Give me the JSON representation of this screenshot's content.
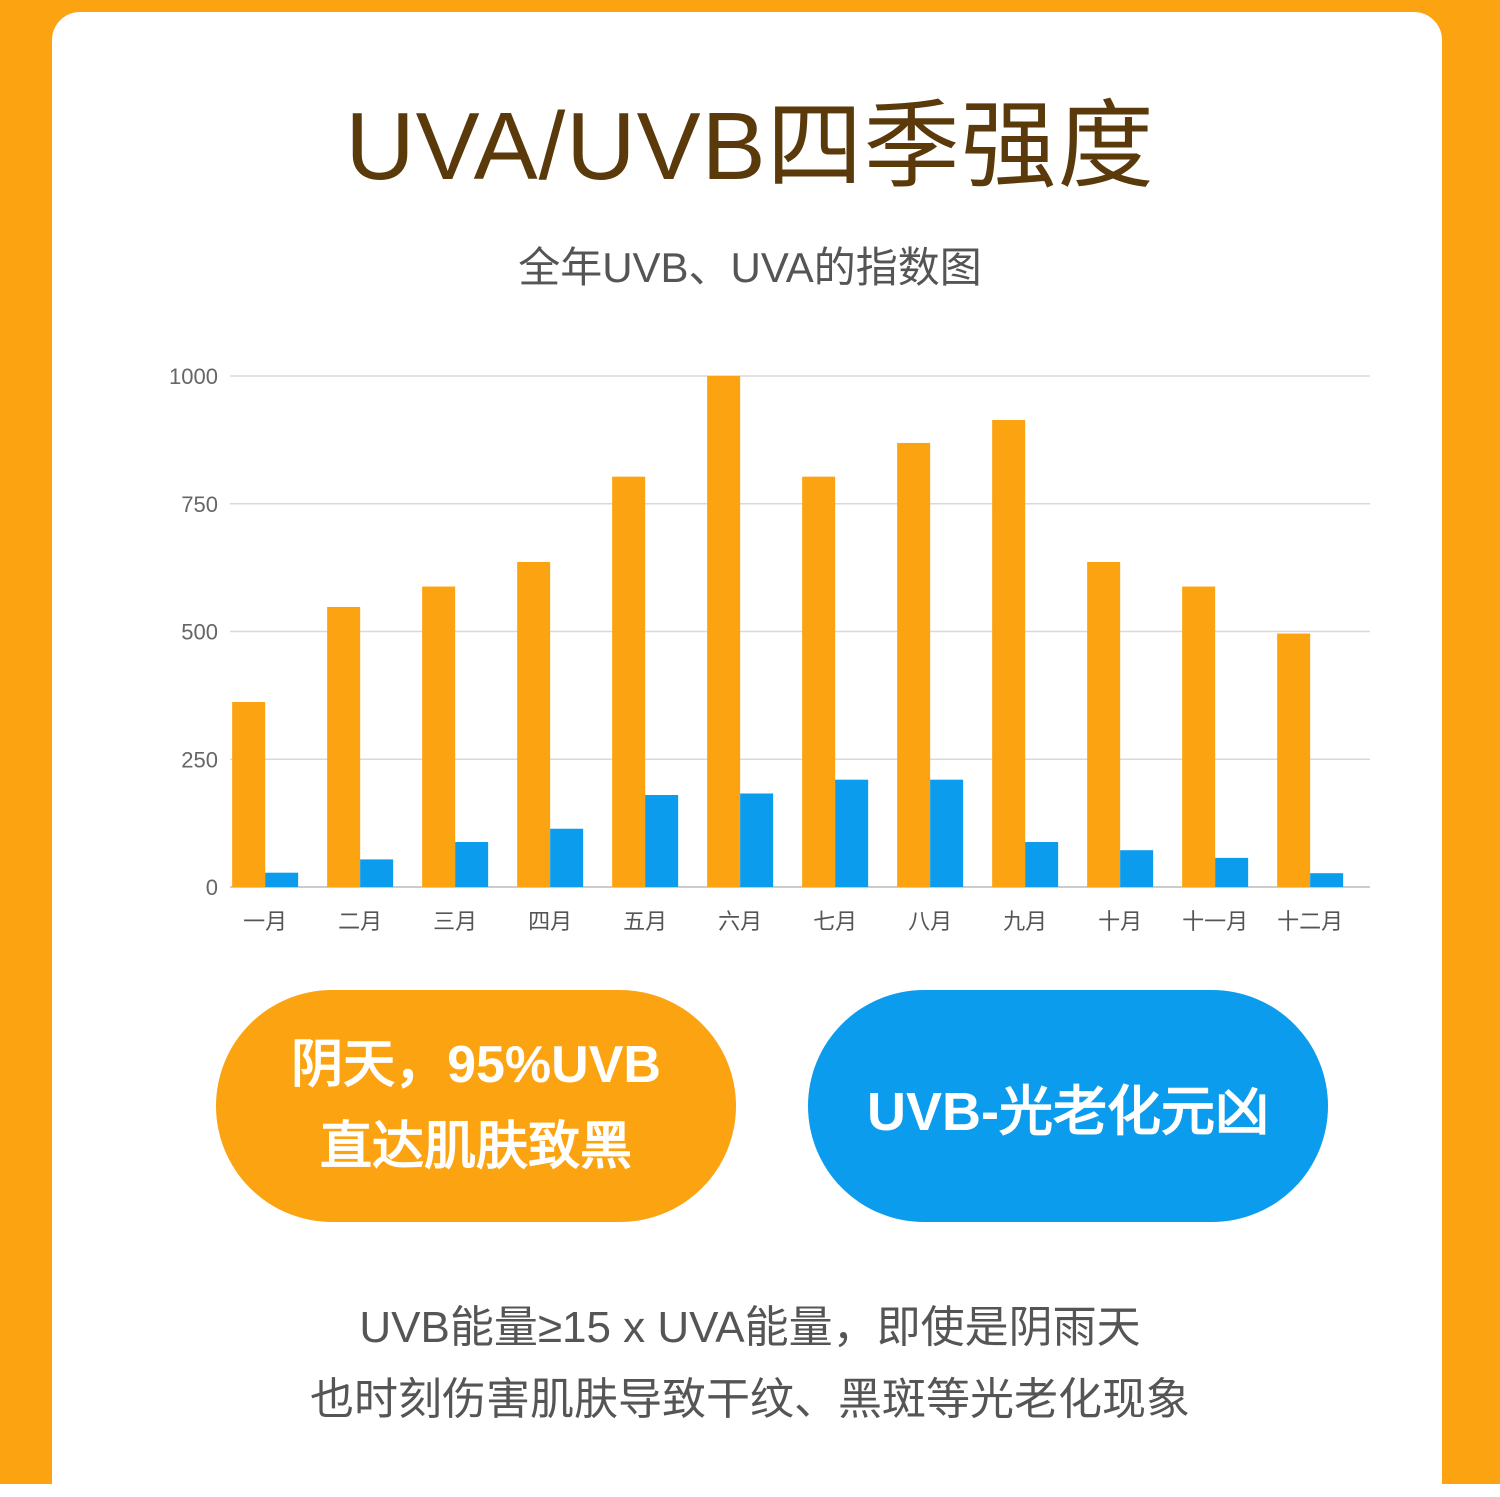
{
  "title": "UVA/UVB四季强度",
  "subtitle": "全年UVB、UVA的指数图",
  "colors": {
    "background": "#fca311",
    "card": "#ffffff",
    "title": "#5a3a0a",
    "uva_bar": "#fca311",
    "uvb_bar": "#0b9ced"
  },
  "chart_data": {
    "type": "bar",
    "categories": [
      "一月",
      "二月",
      "三月",
      "四月",
      "五月",
      "六月",
      "七月",
      "八月",
      "九月",
      "十月",
      "十一月",
      "十二月"
    ],
    "series": [
      {
        "values": [
          362,
          548,
          588,
          636,
          803,
          1000,
          803,
          869,
          914,
          636,
          588,
          496
        ],
        "color": "#fca311"
      },
      {
        "values": [
          28,
          54,
          88,
          114,
          180,
          183,
          210,
          210,
          88,
          72,
          57,
          27
        ],
        "color": "#0b9ced"
      }
    ],
    "ylim": [
      0,
      1000
    ],
    "yticks": [
      0,
      250,
      500,
      750,
      1000
    ],
    "grid": true,
    "legend": "none"
  },
  "callouts": {
    "left_line1": "阴天，95%UVB",
    "left_line2": "直达肌肤致黑",
    "right": "UVB-光老化元凶"
  },
  "footer": {
    "line1": "UVB能量≥15 x UVA能量，即使是阴雨天",
    "line2": "也时刻伤害肌肤导致干纹、黑斑等光老化现象"
  }
}
